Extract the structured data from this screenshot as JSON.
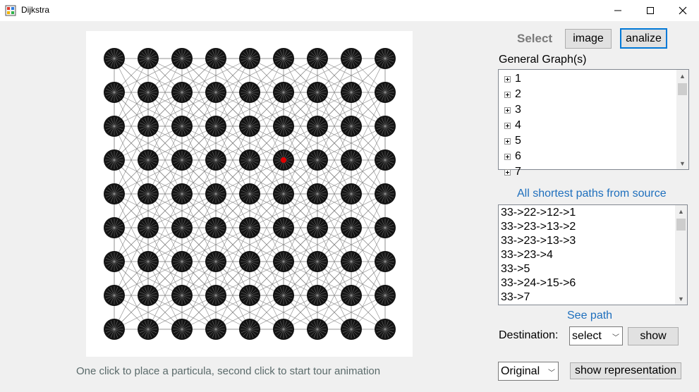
{
  "window": {
    "title": "Dijkstra",
    "minimize": "—",
    "maximize": "☐",
    "close": "✕"
  },
  "canvas": {
    "hint": "One click to place a particula, second click to start tour animation",
    "grid_cols": 9,
    "grid_rows": 9,
    "highlight": {
      "row": 3,
      "col": 5,
      "color": "#e00000"
    },
    "node_color": "#000000",
    "edge_color": "#888888"
  },
  "toolbar": {
    "select_label": "Select",
    "image_label": "image",
    "analize_label": "analize"
  },
  "graphs": {
    "label": "General Graph(s)",
    "items": [
      "1",
      "2",
      "3",
      "4",
      "5",
      "6",
      "7"
    ]
  },
  "paths": {
    "label": "All shortest paths from source",
    "items": [
      "33->22->12->1",
      "33->23->13->2",
      "33->23->13->3",
      "33->23->4",
      "33->5",
      "33->24->15->6",
      "33->7"
    ]
  },
  "see_path": {
    "label": "See path",
    "destination_label": "Destination:",
    "destination_value": "select",
    "show_label": "show"
  },
  "representation": {
    "mode_value": "Original",
    "show_label": "show representation"
  },
  "colors": {
    "accent": "#0078d7",
    "blue_text": "#1e6fbd"
  }
}
